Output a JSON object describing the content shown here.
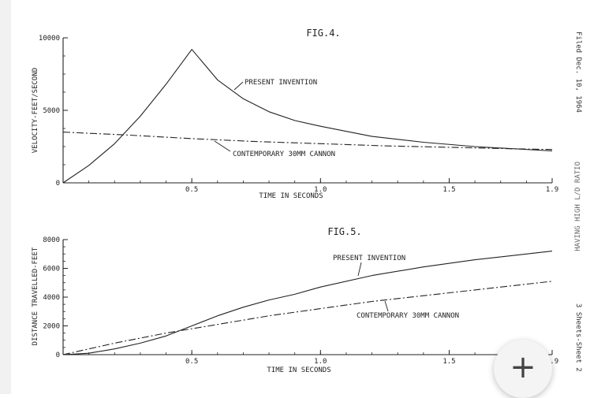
{
  "side_text": {
    "filed": "Filed Dec. 10, 1964",
    "title_fragment": "HAVING HIGH L/D RATIO",
    "sheets": "3 Sheets-Sheet 2"
  },
  "fab": {
    "icon": "plus-icon",
    "glyph": "+"
  },
  "chart_data": [
    {
      "type": "line",
      "title": "FIG.4.",
      "xlabel": "TIME IN SECONDS",
      "ylabel": "VELOCITY-FEET/SECOND",
      "xlim": [
        0,
        1.9
      ],
      "ylim": [
        0,
        10000
      ],
      "x_ticks": [
        0.5,
        1.0,
        1.5,
        1.9
      ],
      "x_tick_labels": [
        "0.5",
        "1.0",
        "1.5",
        "1.9"
      ],
      "y_ticks": [
        0,
        5000,
        10000
      ],
      "y_tick_labels": [
        "0",
        "5000",
        "10000"
      ],
      "series": [
        {
          "name": "PRESENT INVENTION",
          "style": "solid",
          "points": [
            [
              0,
              0
            ],
            [
              0.1,
              1200
            ],
            [
              0.2,
              2700
            ],
            [
              0.3,
              4600
            ],
            [
              0.4,
              6800
            ],
            [
              0.5,
              9200
            ],
            [
              0.6,
              7100
            ],
            [
              0.7,
              5800
            ],
            [
              0.8,
              4900
            ],
            [
              0.9,
              4300
            ],
            [
              1.0,
              3900
            ],
            [
              1.2,
              3200
            ],
            [
              1.4,
              2800
            ],
            [
              1.6,
              2500
            ],
            [
              1.9,
              2200
            ]
          ]
        },
        {
          "name": "CONTEMPORARY 30MM CANNON",
          "style": "dashdot",
          "points": [
            [
              0,
              3500
            ],
            [
              0.25,
              3300
            ],
            [
              0.5,
              3050
            ],
            [
              0.75,
              2850
            ],
            [
              1.0,
              2700
            ],
            [
              1.25,
              2550
            ],
            [
              1.5,
              2450
            ],
            [
              1.75,
              2350
            ],
            [
              1.9,
              2300
            ]
          ]
        }
      ]
    },
    {
      "type": "line",
      "title": "FIG.5.",
      "xlabel": "TIME IN SECONDS",
      "ylabel": "DISTANCE TRAVELLED-FEET",
      "xlim": [
        0,
        1.9
      ],
      "ylim": [
        0,
        8000
      ],
      "x_ticks": [
        0.5,
        1.0,
        1.5,
        1.9
      ],
      "x_tick_labels": [
        "0.5",
        "1.0",
        "1.5",
        "1.9"
      ],
      "y_ticks": [
        0,
        2000,
        4000,
        6000,
        8000
      ],
      "y_tick_labels": [
        "0",
        "2000",
        "4000",
        "6000",
        "8000"
      ],
      "series": [
        {
          "name": "PRESENT INVENTION",
          "style": "solid",
          "points": [
            [
              0,
              0
            ],
            [
              0.1,
              100
            ],
            [
              0.2,
              400
            ],
            [
              0.3,
              800
            ],
            [
              0.4,
              1300
            ],
            [
              0.5,
              2000
            ],
            [
              0.6,
              2700
            ],
            [
              0.7,
              3300
            ],
            [
              0.8,
              3800
            ],
            [
              0.9,
              4200
            ],
            [
              1.0,
              4700
            ],
            [
              1.2,
              5500
            ],
            [
              1.4,
              6100
            ],
            [
              1.6,
              6600
            ],
            [
              1.9,
              7200
            ]
          ]
        },
        {
          "name": "CONTEMPORARY 30MM CANNON",
          "style": "dashdot",
          "points": [
            [
              0,
              0
            ],
            [
              0.2,
              800
            ],
            [
              0.4,
              1500
            ],
            [
              0.6,
              2100
            ],
            [
              0.8,
              2700
            ],
            [
              1.0,
              3200
            ],
            [
              1.2,
              3700
            ],
            [
              1.4,
              4100
            ],
            [
              1.6,
              4500
            ],
            [
              1.9,
              5100
            ]
          ]
        }
      ]
    }
  ]
}
